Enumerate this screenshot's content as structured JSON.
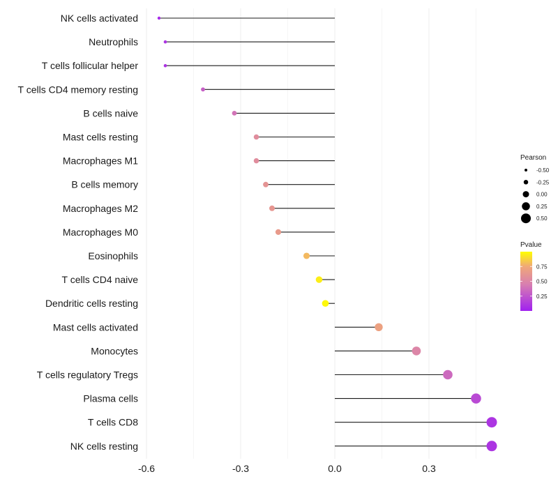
{
  "chart_data": {
    "type": "lollipop",
    "title": "",
    "xlabel": "",
    "ylabel": "",
    "xlim": [
      -0.6,
      0.5
    ],
    "x_ticks": [
      "-0.6",
      "-0.3",
      "0.0",
      "0.3"
    ],
    "x_tick_values": [
      -0.6,
      -0.3,
      0.0,
      0.3
    ],
    "grid": true,
    "categories": [
      "NK cells activated",
      "Neutrophils",
      "T cells follicular helper",
      "T cells CD4 memory resting",
      "B cells naive",
      "Mast cells resting",
      "Macrophages M1",
      "B cells memory",
      "Macrophages M2",
      "Macrophages M0",
      "Eosinophils",
      "T cells CD4 naive",
      "Dendritic cells resting",
      "Mast cells activated",
      "Monocytes",
      "T cells regulatory  Tregs",
      "Plasma cells",
      "T cells CD8",
      "NK cells resting"
    ],
    "values": [
      -0.56,
      -0.54,
      -0.54,
      -0.42,
      -0.32,
      -0.25,
      -0.25,
      -0.22,
      -0.2,
      -0.18,
      -0.09,
      -0.05,
      -0.03,
      0.14,
      0.26,
      0.36,
      0.45,
      0.5,
      0.5
    ],
    "pvalues": [
      0.05,
      0.1,
      0.1,
      0.3,
      0.4,
      0.55,
      0.55,
      0.6,
      0.62,
      0.65,
      0.8,
      0.95,
      0.98,
      0.7,
      0.5,
      0.35,
      0.2,
      0.1,
      0.1
    ],
    "legend_size": {
      "title": "Pearson",
      "labels": [
        "-0.50",
        "-0.25",
        "0.00",
        "0.25",
        "0.50"
      ],
      "values": [
        -0.5,
        -0.25,
        0.0,
        0.25,
        0.5
      ]
    },
    "legend_color": {
      "title": "Pvalue",
      "labels": [
        "0.75",
        "0.50",
        "0.25"
      ],
      "values": [
        0.75,
        0.5,
        0.25
      ],
      "range": [
        0.0,
        1.0
      ],
      "gradient_colors": [
        "#a020f0",
        "#d87fb0",
        "#f0a878",
        "#ffff00"
      ]
    },
    "colors": {
      "stem": "#1a1a1a",
      "grid": "#ebebeb"
    }
  }
}
